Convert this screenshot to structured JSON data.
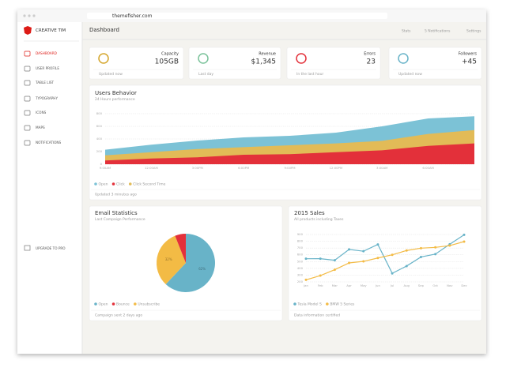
{
  "browser": {
    "url": "themefisher.com"
  },
  "sidebar": {
    "brand": "CREATIVE TIM",
    "items": [
      "DASHBOARD",
      "USER PROFILE",
      "TABLE LIST",
      "TYPOGRAPHY",
      "ICONS",
      "MAPS",
      "NOTIFICATIONS"
    ],
    "upgrade": "UPGRADE TO PRO"
  },
  "header": {
    "title": "Dashboard",
    "links": [
      "Stats",
      "5 Notifications",
      "Settings"
    ]
  },
  "stats": [
    {
      "label": "Capacity",
      "value": "105GB",
      "footer": "Updated now"
    },
    {
      "label": "Revenue",
      "value": "$1,345",
      "footer": "Last day"
    },
    {
      "label": "Errors",
      "value": "23",
      "footer": "In the last hour"
    },
    {
      "label": "Followers",
      "value": "+45",
      "footer": "Updated now"
    }
  ],
  "users_behavior": {
    "type": "area",
    "title": "Users Behavior",
    "subtitle": "24 Hours performance",
    "categories": [
      "9:00AM",
      "12:00AM",
      "3:00PM",
      "6:00PM",
      "9:00PM",
      "12:00PM",
      "3:00AM",
      "6:00AM",
      null
    ],
    "series": [
      {
        "name": "Open",
        "color": "#7cc2d6",
        "values": [
          230,
          310,
          375,
          425,
          450,
          500,
          600,
          725,
          760
        ]
      },
      {
        "name": "Click",
        "color": "#e3303a",
        "values": [
          60,
          90,
          110,
          150,
          160,
          190,
          220,
          290,
          330
        ]
      },
      {
        "name": "Click Second Time",
        "color": "#e2bb57",
        "values": [
          140,
          190,
          240,
          270,
          300,
          330,
          370,
          480,
          540
        ]
      }
    ],
    "ylim": [
      0,
      800
    ],
    "yticks": [
      0,
      200,
      400,
      600,
      800
    ],
    "grid": true,
    "footer": "Updated 3 minutes ago"
  },
  "email_statistics": {
    "type": "pie",
    "title": "Email Statistics",
    "subtitle": "Last Campaign Performance",
    "categories": [
      "Open",
      "Unsubscribe",
      "Bounce"
    ],
    "values": [
      62,
      32,
      6
    ],
    "value_labels": [
      "62%",
      "32%",
      null
    ],
    "colors": [
      "#68b3c8",
      "#f3bb45",
      "#e3303a"
    ],
    "footer": "Campaign sent 2 days ago"
  },
  "sales_2015": {
    "type": "line",
    "title": "2015 Sales",
    "subtitle": "All products including Taxes",
    "categories": [
      "Jan",
      "Feb",
      "Mar",
      "Apr",
      "May",
      "Jun",
      "Jul",
      "Aug",
      "Sep",
      "Oct",
      "Nov",
      "Dec"
    ],
    "series": [
      {
        "name": "Tesla Model S",
        "color": "#68b3c8",
        "values": [
          542,
          543,
          520,
          680,
          653,
          753,
          326,
          434,
          568,
          610,
          756,
          895
        ]
      },
      {
        "name": "BMW 5 Series",
        "color": "#f3bb45",
        "values": [
          230,
          293,
          380,
          480,
          503,
          553,
          600,
          664,
          698,
          710,
          736,
          795
        ]
      }
    ],
    "ylim": [
      200,
      900
    ],
    "yticks": [
      200,
      300,
      400,
      500,
      600,
      700,
      800,
      900
    ],
    "grid": true,
    "footer": "Data information certified"
  }
}
